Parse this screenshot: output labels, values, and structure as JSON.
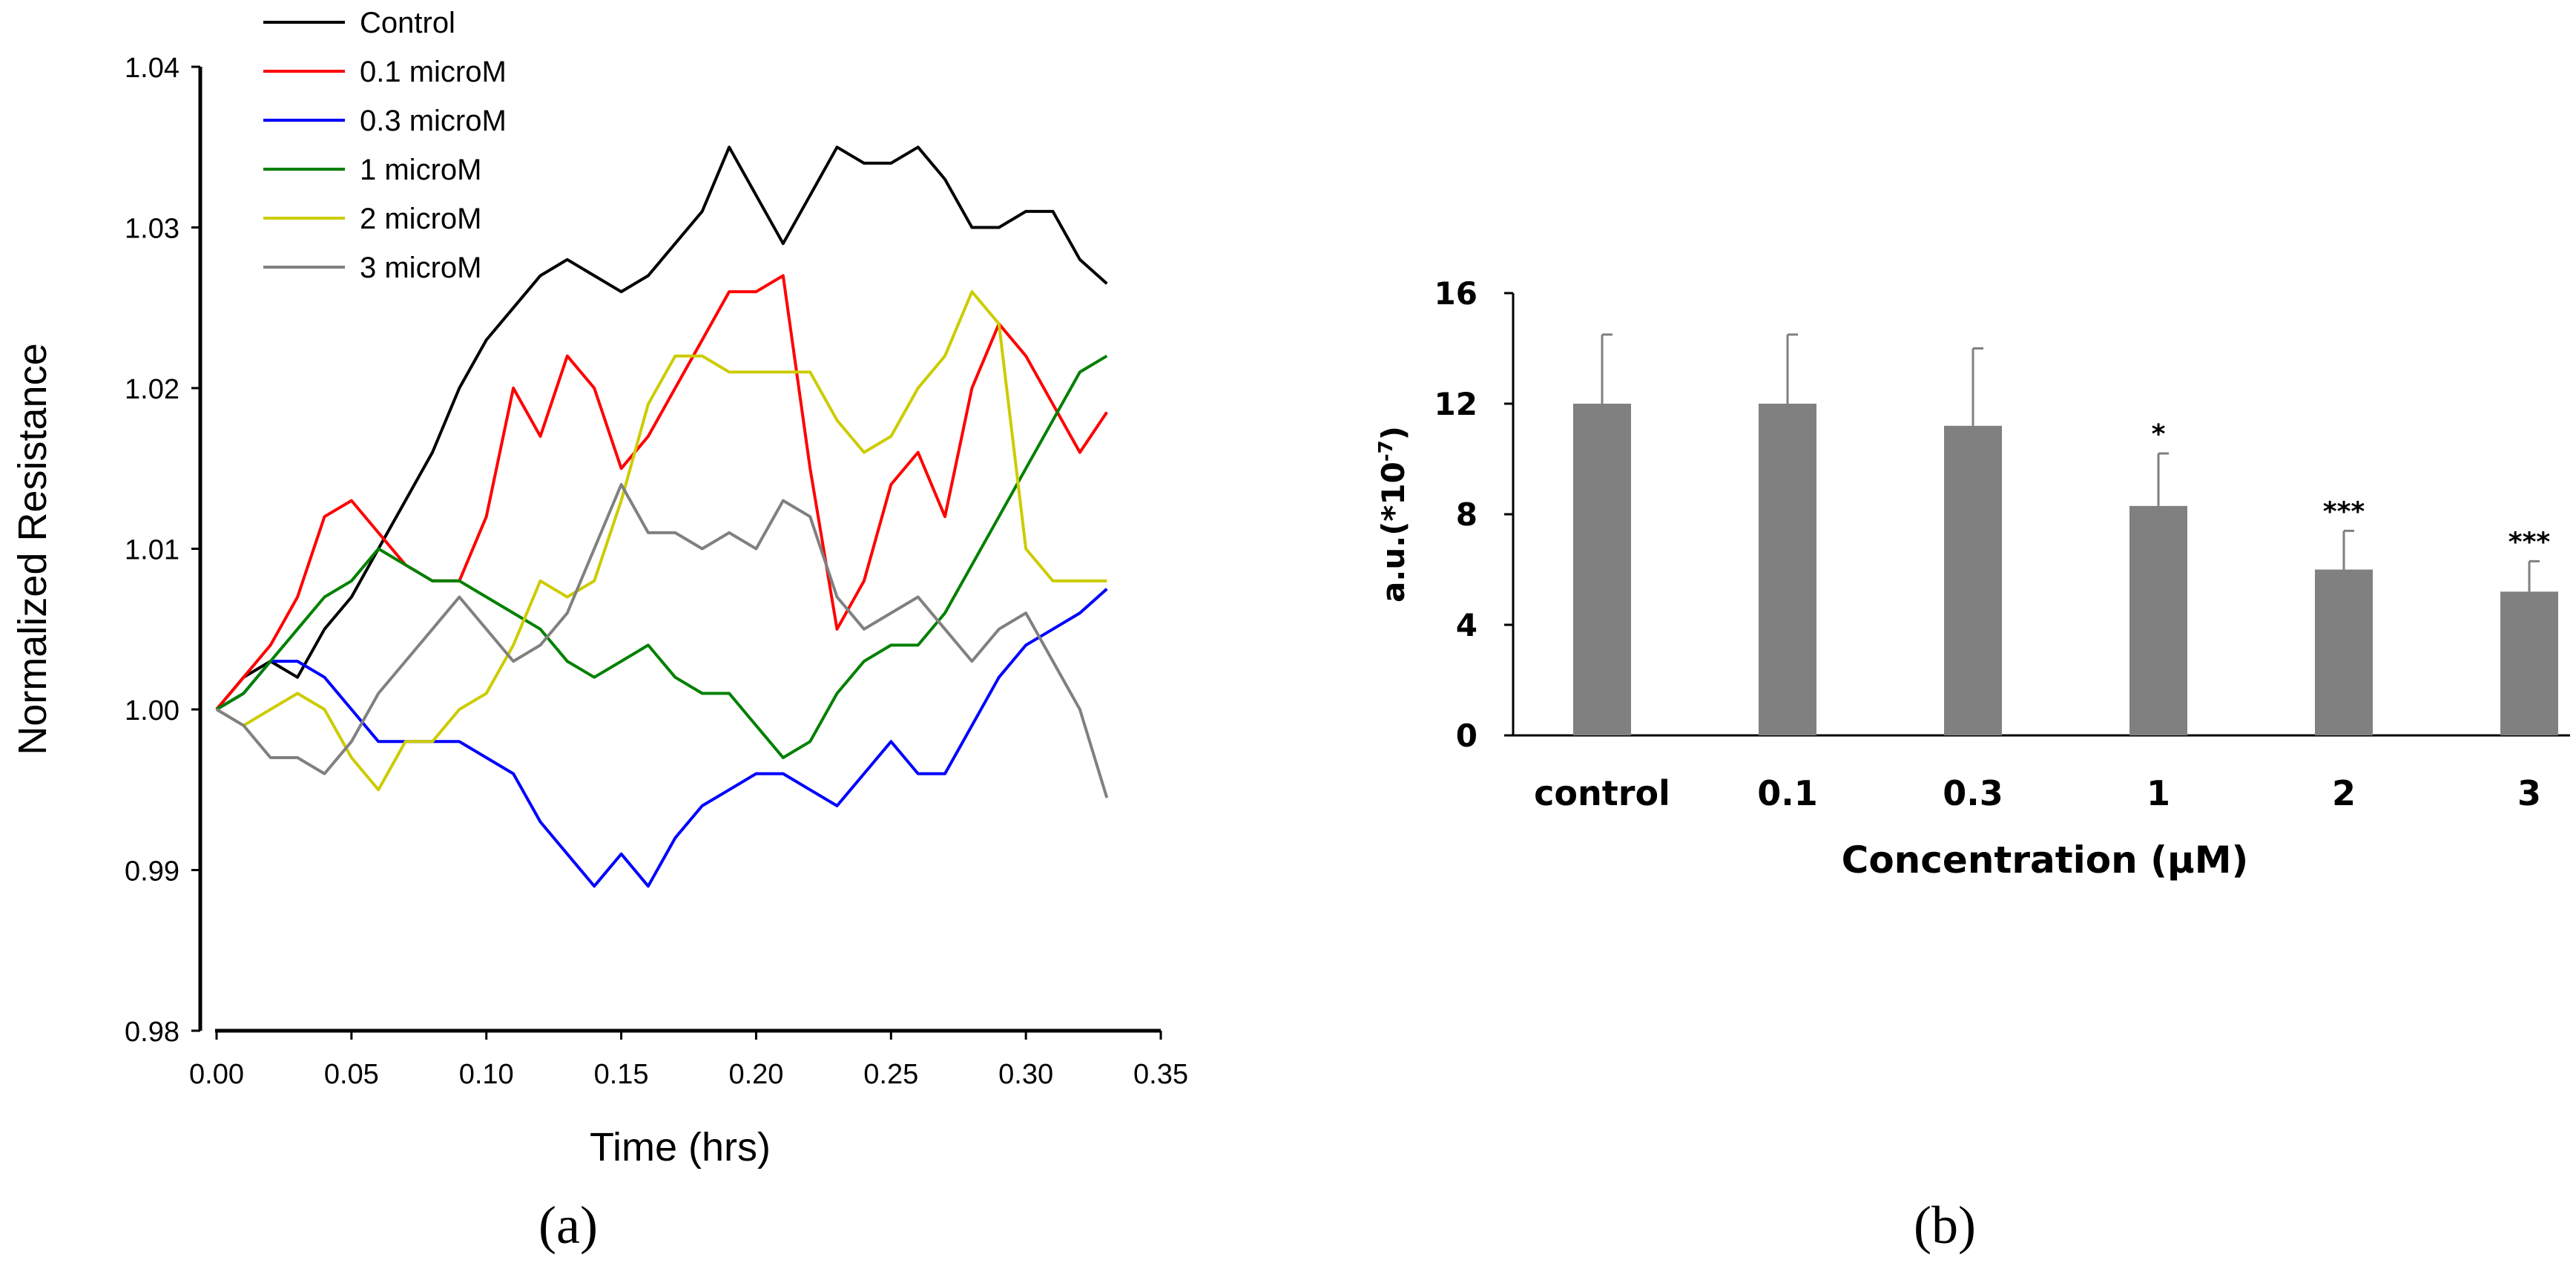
{
  "chart_data": [
    {
      "panel": "(a)",
      "type": "line",
      "xlabel": "Time (hrs)",
      "ylabel": "Normalized Resistance",
      "xlim": [
        0,
        0.35
      ],
      "ylim": [
        0.98,
        1.04
      ],
      "xticks": [
        "0.00",
        "0.05",
        "0.10",
        "0.15",
        "0.20",
        "0.25",
        "0.30",
        "0.35"
      ],
      "yticks": [
        "0.98",
        "0.99",
        "1.00",
        "1.01",
        "1.02",
        "1.03",
        "1.04"
      ],
      "legend_position": "top-left",
      "series": [
        {
          "name": "Control",
          "color": "#000000",
          "x": [
            0,
            0.01,
            0.02,
            0.03,
            0.04,
            0.05,
            0.06,
            0.07,
            0.08,
            0.09,
            0.1,
            0.11,
            0.12,
            0.13,
            0.14,
            0.15,
            0.16,
            0.17,
            0.18,
            0.19,
            0.2,
            0.21,
            0.22,
            0.23,
            0.24,
            0.25,
            0.26,
            0.27,
            0.28,
            0.29,
            0.3,
            0.31,
            0.32,
            0.33
          ],
          "y": [
            1.0,
            1.002,
            1.003,
            1.002,
            1.005,
            1.007,
            1.01,
            1.013,
            1.016,
            1.02,
            1.023,
            1.025,
            1.027,
            1.028,
            1.027,
            1.026,
            1.027,
            1.029,
            1.031,
            1.035,
            1.032,
            1.029,
            1.032,
            1.035,
            1.034,
            1.034,
            1.035,
            1.033,
            1.03,
            1.03,
            1.031,
            1.031,
            1.028,
            1.0265
          ]
        },
        {
          "name": "0.1 microM",
          "color": "#ff0000",
          "x": [
            0,
            0.01,
            0.02,
            0.03,
            0.04,
            0.05,
            0.06,
            0.07,
            0.08,
            0.09,
            0.1,
            0.11,
            0.12,
            0.13,
            0.14,
            0.15,
            0.16,
            0.17,
            0.18,
            0.19,
            0.2,
            0.21,
            0.22,
            0.23,
            0.24,
            0.25,
            0.26,
            0.27,
            0.28,
            0.29,
            0.3,
            0.31,
            0.32,
            0.33
          ],
          "y": [
            1.0,
            1.002,
            1.004,
            1.007,
            1.012,
            1.013,
            1.011,
            1.009,
            1.008,
            1.008,
            1.012,
            1.02,
            1.017,
            1.022,
            1.02,
            1.015,
            1.017,
            1.02,
            1.023,
            1.026,
            1.026,
            1.027,
            1.015,
            1.005,
            1.008,
            1.014,
            1.016,
            1.012,
            1.02,
            1.024,
            1.022,
            1.019,
            1.016,
            1.0185
          ]
        },
        {
          "name": "0.3 microM",
          "color": "#0000ff",
          "x": [
            0,
            0.01,
            0.02,
            0.03,
            0.04,
            0.05,
            0.06,
            0.07,
            0.08,
            0.09,
            0.1,
            0.11,
            0.12,
            0.13,
            0.14,
            0.15,
            0.16,
            0.17,
            0.18,
            0.19,
            0.2,
            0.21,
            0.22,
            0.23,
            0.24,
            0.25,
            0.26,
            0.27,
            0.28,
            0.29,
            0.3,
            0.31,
            0.32,
            0.33
          ],
          "y": [
            1.0,
            1.001,
            1.003,
            1.003,
            1.002,
            1.0,
            0.998,
            0.998,
            0.998,
            0.998,
            0.997,
            0.996,
            0.993,
            0.991,
            0.989,
            0.991,
            0.989,
            0.992,
            0.994,
            0.995,
            0.996,
            0.996,
            0.995,
            0.994,
            0.996,
            0.998,
            0.996,
            0.996,
            0.999,
            1.002,
            1.004,
            1.005,
            1.006,
            1.0075
          ]
        },
        {
          "name": "1 microM",
          "color": "#008000",
          "x": [
            0,
            0.01,
            0.02,
            0.03,
            0.04,
            0.05,
            0.06,
            0.07,
            0.08,
            0.09,
            0.1,
            0.11,
            0.12,
            0.13,
            0.14,
            0.15,
            0.16,
            0.17,
            0.18,
            0.19,
            0.2,
            0.21,
            0.22,
            0.23,
            0.24,
            0.25,
            0.26,
            0.27,
            0.28,
            0.29,
            0.3,
            0.31,
            0.32,
            0.33
          ],
          "y": [
            1.0,
            1.001,
            1.003,
            1.005,
            1.007,
            1.008,
            1.01,
            1.009,
            1.008,
            1.008,
            1.007,
            1.006,
            1.005,
            1.003,
            1.002,
            1.003,
            1.004,
            1.002,
            1.001,
            1.001,
            0.999,
            0.997,
            0.998,
            1.001,
            1.003,
            1.004,
            1.004,
            1.006,
            1.009,
            1.012,
            1.015,
            1.018,
            1.021,
            1.022
          ]
        },
        {
          "name": "2 microM",
          "color": "#cccc00",
          "x": [
            0,
            0.01,
            0.02,
            0.03,
            0.04,
            0.05,
            0.06,
            0.07,
            0.08,
            0.09,
            0.1,
            0.11,
            0.12,
            0.13,
            0.14,
            0.15,
            0.16,
            0.17,
            0.18,
            0.19,
            0.2,
            0.21,
            0.22,
            0.23,
            0.24,
            0.25,
            0.26,
            0.27,
            0.28,
            0.29,
            0.3,
            0.31,
            0.32,
            0.33
          ],
          "y": [
            1.0,
            0.999,
            1.0,
            1.001,
            1.0,
            0.997,
            0.995,
            0.998,
            0.998,
            1.0,
            1.001,
            1.004,
            1.008,
            1.007,
            1.008,
            1.013,
            1.019,
            1.022,
            1.022,
            1.021,
            1.021,
            1.021,
            1.021,
            1.018,
            1.016,
            1.017,
            1.02,
            1.022,
            1.026,
            1.024,
            1.01,
            1.008,
            1.008,
            1.008
          ]
        },
        {
          "name": "3 microM",
          "color": "#808080",
          "x": [
            0,
            0.01,
            0.02,
            0.03,
            0.04,
            0.05,
            0.06,
            0.07,
            0.08,
            0.09,
            0.1,
            0.11,
            0.12,
            0.13,
            0.14,
            0.15,
            0.16,
            0.17,
            0.18,
            0.19,
            0.2,
            0.21,
            0.22,
            0.23,
            0.24,
            0.25,
            0.26,
            0.27,
            0.28,
            0.29,
            0.3,
            0.31,
            0.32,
            0.33
          ],
          "y": [
            1.0,
            0.999,
            0.997,
            0.997,
            0.996,
            0.998,
            1.001,
            1.003,
            1.005,
            1.007,
            1.005,
            1.003,
            1.004,
            1.006,
            1.01,
            1.014,
            1.011,
            1.011,
            1.01,
            1.011,
            1.01,
            1.013,
            1.012,
            1.007,
            1.005,
            1.006,
            1.007,
            1.005,
            1.003,
            1.005,
            1.006,
            1.003,
            1.0,
            0.9945
          ]
        }
      ]
    },
    {
      "panel": "(b)",
      "type": "bar",
      "xlabel": "Concentration (μM)",
      "ylabel": "a.u.(*10",
      "ylabel_exponent": "-7",
      "ylabel_suffix": ")",
      "ylim": [
        0,
        16
      ],
      "yticks": [
        "0",
        "4",
        "8",
        "12",
        "16"
      ],
      "categories": [
        "control",
        "0.1",
        "0.3",
        "1",
        "2",
        "3"
      ],
      "values": [
        12.0,
        12.0,
        11.2,
        8.3,
        6.0,
        5.2
      ],
      "errors": [
        2.5,
        2.5,
        2.8,
        1.9,
        1.4,
        1.1
      ],
      "significance": [
        "",
        "",
        "",
        "*",
        "***",
        "***"
      ],
      "bar_color": "#808080"
    }
  ]
}
